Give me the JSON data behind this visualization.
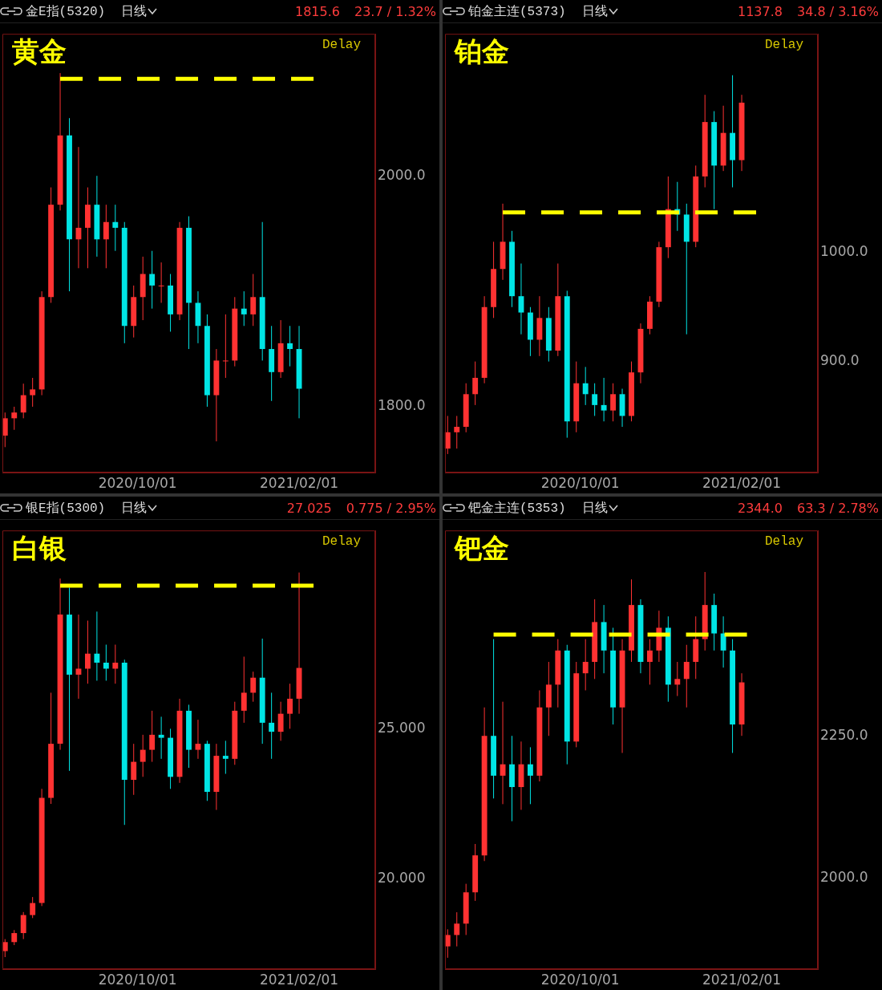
{
  "chart_data": [
    {
      "type": "candlestick",
      "title": "金E指(5320)",
      "subtitle": "日线",
      "annotations": [
        "1815.6",
        "23.7 / 1.32%",
        "黄金",
        "Delay"
      ],
      "x": [
        "2020-06-22",
        "2020-06-29",
        "2020-07-06",
        "2020-07-13",
        "2020-07-20",
        "2020-07-27",
        "2020-08-03",
        "2020-08-10",
        "2020-08-17",
        "2020-08-24",
        "2020-08-31",
        "2020-09-07",
        "2020-09-14",
        "2020-09-21",
        "2020-09-28",
        "2020-10-05",
        "2020-10-12",
        "2020-10-19",
        "2020-10-26",
        "2020-11-02",
        "2020-11-09",
        "2020-11-16",
        "2020-11-23",
        "2020-11-30",
        "2020-12-07",
        "2020-12-14",
        "2020-12-21",
        "2020-12-28",
        "2021-01-04",
        "2021-01-11",
        "2021-01-18",
        "2021-01-25",
        "2021-02-01"
      ],
      "ohlc": [
        [
          1775,
          1795,
          1765,
          1790
        ],
        [
          1790,
          1800,
          1780,
          1795
        ],
        [
          1795,
          1820,
          1790,
          1810
        ],
        [
          1810,
          1825,
          1800,
          1815
        ],
        [
          1815,
          1900,
          1810,
          1895
        ],
        [
          1895,
          1990,
          1890,
          1975
        ],
        [
          1975,
          2089,
          1970,
          2035
        ],
        [
          2035,
          2050,
          1900,
          1945
        ],
        [
          1945,
          2025,
          1920,
          1955
        ],
        [
          1955,
          1990,
          1920,
          1975
        ],
        [
          1975,
          2000,
          1930,
          1945
        ],
        [
          1945,
          1975,
          1920,
          1960
        ],
        [
          1960,
          1975,
          1935,
          1955
        ],
        [
          1955,
          1960,
          1855,
          1870
        ],
        [
          1870,
          1905,
          1860,
          1895
        ],
        [
          1895,
          1930,
          1875,
          1915
        ],
        [
          1915,
          1935,
          1885,
          1905
        ],
        [
          1905,
          1925,
          1890,
          1905
        ],
        [
          1905,
          1915,
          1865,
          1880
        ],
        [
          1880,
          1960,
          1875,
          1955
        ],
        [
          1955,
          1965,
          1850,
          1890
        ],
        [
          1890,
          1900,
          1855,
          1870
        ],
        [
          1870,
          1880,
          1800,
          1810
        ],
        [
          1810,
          1850,
          1770,
          1840
        ],
        [
          1840,
          1880,
          1825,
          1840
        ],
        [
          1840,
          1895,
          1835,
          1885
        ],
        [
          1885,
          1900,
          1870,
          1880
        ],
        [
          1880,
          1915,
          1870,
          1895
        ],
        [
          1895,
          1960,
          1840,
          1850
        ],
        [
          1850,
          1870,
          1805,
          1830
        ],
        [
          1830,
          1875,
          1825,
          1855
        ],
        [
          1855,
          1870,
          1835,
          1850
        ],
        [
          1850,
          1870,
          1790,
          1815.6
        ]
      ],
      "xlim": [
        "2020-06-20",
        "2021-03-31"
      ],
      "xticks": [
        {
          "value": "2020-10-01",
          "label": "2020/10/01"
        },
        {
          "value": "2021-02-01",
          "label": "2021/02/01"
        }
      ],
      "ylim": [
        1743,
        2123
      ],
      "yticks": [
        {
          "value": 1800,
          "label": "1800.0"
        },
        {
          "value": 2000,
          "label": "2000.0"
        }
      ],
      "ref_lines": [
        {
          "axis": "y",
          "value": 2084,
          "color": "#ffff00",
          "line_style": "dashed"
        }
      ]
    },
    {
      "type": "candlestick",
      "title": "铂金主连(5373)",
      "subtitle": "日线",
      "annotations": [
        "1137.8",
        "34.8 / 3.16%",
        "铂金",
        "Delay"
      ],
      "x": [
        "2020-06-22",
        "2020-06-29",
        "2020-07-06",
        "2020-07-13",
        "2020-07-20",
        "2020-07-27",
        "2020-08-03",
        "2020-08-10",
        "2020-08-17",
        "2020-08-24",
        "2020-08-31",
        "2020-09-07",
        "2020-09-14",
        "2020-09-21",
        "2020-09-28",
        "2020-10-05",
        "2020-10-12",
        "2020-10-19",
        "2020-10-26",
        "2020-11-02",
        "2020-11-09",
        "2020-11-16",
        "2020-11-23",
        "2020-11-30",
        "2020-12-07",
        "2020-12-14",
        "2020-12-21",
        "2020-12-28",
        "2021-01-04",
        "2021-01-11",
        "2021-01-18",
        "2021-01-25",
        "2021-02-01"
      ],
      "ohlc": [
        [
          820,
          850,
          815,
          835
        ],
        [
          835,
          850,
          820,
          840
        ],
        [
          840,
          880,
          835,
          870
        ],
        [
          870,
          900,
          860,
          885
        ],
        [
          885,
          960,
          880,
          950
        ],
        [
          950,
          1010,
          940,
          985
        ],
        [
          985,
          1045,
          975,
          1010
        ],
        [
          1010,
          1020,
          950,
          960
        ],
        [
          960,
          990,
          925,
          945
        ],
        [
          945,
          950,
          905,
          920
        ],
        [
          920,
          960,
          905,
          940
        ],
        [
          940,
          950,
          900,
          910
        ],
        [
          910,
          990,
          905,
          960
        ],
        [
          960,
          965,
          830,
          845
        ],
        [
          845,
          900,
          835,
          880
        ],
        [
          880,
          895,
          860,
          870
        ],
        [
          870,
          880,
          850,
          860
        ],
        [
          860,
          885,
          845,
          855
        ],
        [
          855,
          880,
          845,
          870
        ],
        [
          870,
          875,
          840,
          850
        ],
        [
          850,
          900,
          845,
          890
        ],
        [
          890,
          935,
          880,
          930
        ],
        [
          930,
          960,
          925,
          955
        ],
        [
          955,
          1010,
          950,
          1005
        ],
        [
          1005,
          1070,
          995,
          1040
        ],
        [
          1040,
          1065,
          1020,
          1035
        ],
        [
          1035,
          1045,
          925,
          1010
        ],
        [
          1010,
          1080,
          1005,
          1070
        ],
        [
          1070,
          1145,
          1060,
          1120
        ],
        [
          1120,
          1130,
          1040,
          1080
        ],
        [
          1080,
          1135,
          1075,
          1110
        ],
        [
          1110,
          1163,
          1060,
          1085
        ],
        [
          1085,
          1145,
          1075,
          1137.8
        ]
      ],
      "xlim": [
        "2020-06-20",
        "2021-03-31"
      ],
      "xticks": [
        {
          "value": "2020-10-01",
          "label": "2020/10/01"
        },
        {
          "value": "2021-02-01",
          "label": "2021/02/01"
        }
      ],
      "ylim": [
        798,
        1201
      ],
      "yticks": [
        {
          "value": 900,
          "label": "900.0"
        },
        {
          "value": 1000,
          "label": "1000.0"
        }
      ],
      "ref_lines": [
        {
          "axis": "y",
          "value": 1037,
          "color": "#ffff00",
          "line_style": "dashed"
        }
      ]
    },
    {
      "type": "candlestick",
      "title": "银E指(5300)",
      "subtitle": "日线",
      "annotations": [
        "27.025",
        "0.775 / 2.95%",
        "白银",
        "Delay"
      ],
      "x": [
        "2020-06-22",
        "2020-06-29",
        "2020-07-06",
        "2020-07-13",
        "2020-07-20",
        "2020-07-27",
        "2020-08-03",
        "2020-08-10",
        "2020-08-17",
        "2020-08-24",
        "2020-08-31",
        "2020-09-07",
        "2020-09-14",
        "2020-09-21",
        "2020-09-28",
        "2020-10-05",
        "2020-10-12",
        "2020-10-19",
        "2020-10-26",
        "2020-11-02",
        "2020-11-09",
        "2020-11-16",
        "2020-11-23",
        "2020-11-30",
        "2020-12-07",
        "2020-12-14",
        "2020-12-21",
        "2020-12-28",
        "2021-01-04",
        "2021-01-11",
        "2021-01-18",
        "2021-01-25",
        "2021-02-01"
      ],
      "ohlc": [
        [
          17.6,
          18.0,
          17.4,
          17.9
        ],
        [
          17.9,
          18.3,
          17.8,
          18.2
        ],
        [
          18.2,
          18.9,
          18.0,
          18.8
        ],
        [
          18.8,
          19.4,
          18.7,
          19.2
        ],
        [
          19.2,
          23.0,
          19.1,
          22.7
        ],
        [
          22.7,
          26.2,
          22.5,
          24.5
        ],
        [
          24.5,
          30.0,
          24.3,
          28.8
        ],
        [
          28.8,
          29.7,
          23.6,
          26.8
        ],
        [
          26.8,
          28.8,
          26.0,
          27.0
        ],
        [
          27.0,
          28.6,
          26.5,
          27.5
        ],
        [
          27.5,
          28.9,
          26.6,
          27.2
        ],
        [
          27.2,
          27.8,
          26.6,
          27.0
        ],
        [
          27.0,
          27.8,
          26.5,
          27.2
        ],
        [
          27.2,
          27.3,
          21.8,
          23.3
        ],
        [
          23.3,
          24.5,
          22.8,
          23.9
        ],
        [
          23.9,
          24.8,
          23.4,
          24.3
        ],
        [
          24.3,
          25.6,
          23.9,
          24.8
        ],
        [
          24.8,
          25.4,
          24.0,
          24.7
        ],
        [
          24.7,
          25.0,
          23.0,
          23.4
        ],
        [
          23.4,
          26.0,
          23.2,
          25.6
        ],
        [
          25.6,
          25.8,
          23.7,
          24.3
        ],
        [
          24.3,
          25.3,
          24.0,
          24.5
        ],
        [
          24.5,
          24.6,
          22.6,
          22.9
        ],
        [
          22.9,
          24.5,
          22.3,
          24.1
        ],
        [
          24.1,
          24.6,
          23.5,
          24.0
        ],
        [
          24.0,
          25.9,
          23.8,
          25.6
        ],
        [
          25.6,
          27.4,
          25.2,
          26.2
        ],
        [
          26.2,
          26.9,
          25.9,
          26.7
        ],
        [
          26.7,
          28.0,
          24.5,
          25.2
        ],
        [
          25.2,
          26.2,
          24.0,
          24.9
        ],
        [
          24.9,
          25.9,
          24.6,
          25.5
        ],
        [
          25.5,
          26.5,
          25.0,
          26.0
        ],
        [
          26.0,
          30.2,
          25.5,
          27.025
        ]
      ],
      "xlim": [
        "2020-06-20",
        "2021-03-31"
      ],
      "xticks": [
        {
          "value": "2020-10-01",
          "label": "2020/10/01"
        },
        {
          "value": "2021-02-01",
          "label": "2021/02/01"
        }
      ],
      "ylim": [
        17.0,
        31.6
      ],
      "yticks": [
        {
          "value": 20,
          "label": "20.000"
        },
        {
          "value": 25,
          "label": "25.000"
        }
      ],
      "ref_lines": [
        {
          "axis": "y",
          "value": 29.76,
          "color": "#ffff00",
          "line_style": "dashed"
        }
      ]
    },
    {
      "type": "candlestick",
      "title": "钯金主连(5353)",
      "subtitle": "日线",
      "annotations": [
        "2344.0",
        "63.3 / 2.78%",
        "钯金",
        "Delay"
      ],
      "x": [
        "2020-06-22",
        "2020-06-29",
        "2020-07-06",
        "2020-07-13",
        "2020-07-20",
        "2020-07-27",
        "2020-08-03",
        "2020-08-10",
        "2020-08-17",
        "2020-08-24",
        "2020-08-31",
        "2020-09-07",
        "2020-09-14",
        "2020-09-21",
        "2020-09-28",
        "2020-10-05",
        "2020-10-12",
        "2020-10-19",
        "2020-10-26",
        "2020-11-02",
        "2020-11-09",
        "2020-11-16",
        "2020-11-23",
        "2020-11-30",
        "2020-12-07",
        "2020-12-14",
        "2020-12-21",
        "2020-12-28",
        "2021-01-04",
        "2021-01-11",
        "2021-01-18",
        "2021-01-25",
        "2021-02-01"
      ],
      "ohlc": [
        [
          1880,
          1910,
          1860,
          1900
        ],
        [
          1900,
          1940,
          1880,
          1920
        ],
        [
          1920,
          1990,
          1900,
          1975
        ],
        [
          1975,
          2060,
          1960,
          2040
        ],
        [
          2040,
          2300,
          2030,
          2250
        ],
        [
          2250,
          2420,
          2140,
          2180
        ],
        [
          2180,
          2310,
          2130,
          2200
        ],
        [
          2200,
          2250,
          2100,
          2160
        ],
        [
          2160,
          2240,
          2120,
          2200
        ],
        [
          2200,
          2230,
          2130,
          2180
        ],
        [
          2180,
          2330,
          2170,
          2300
        ],
        [
          2300,
          2380,
          2250,
          2340
        ],
        [
          2340,
          2420,
          2300,
          2400
        ],
        [
          2400,
          2410,
          2200,
          2240
        ],
        [
          2240,
          2380,
          2230,
          2360
        ],
        [
          2360,
          2420,
          2330,
          2380
        ],
        [
          2380,
          2490,
          2350,
          2450
        ],
        [
          2450,
          2480,
          2360,
          2400
        ],
        [
          2400,
          2440,
          2270,
          2300
        ],
        [
          2300,
          2420,
          2220,
          2400
        ],
        [
          2400,
          2525,
          2380,
          2480
        ],
        [
          2480,
          2490,
          2360,
          2380
        ],
        [
          2380,
          2420,
          2340,
          2400
        ],
        [
          2400,
          2470,
          2380,
          2440
        ],
        [
          2440,
          2460,
          2310,
          2340
        ],
        [
          2340,
          2380,
          2320,
          2350
        ],
        [
          2350,
          2410,
          2300,
          2380
        ],
        [
          2380,
          2460,
          2350,
          2420
        ],
        [
          2420,
          2538,
          2400,
          2480
        ],
        [
          2480,
          2500,
          2400,
          2430
        ],
        [
          2430,
          2460,
          2370,
          2400
        ],
        [
          2400,
          2420,
          2220,
          2270
        ],
        [
          2270,
          2360,
          2250,
          2344.0
        ]
      ],
      "xlim": [
        "2020-06-20",
        "2021-03-31"
      ],
      "xticks": [
        {
          "value": "2020-10-01",
          "label": "2020/10/01"
        },
        {
          "value": "2021-02-01",
          "label": "2021/02/01"
        }
      ],
      "ylim": [
        1840,
        2611
      ],
      "yticks": [
        {
          "value": 2000,
          "label": "2000.0"
        },
        {
          "value": 2250,
          "label": "2250.0"
        }
      ],
      "ref_lines": [
        {
          "axis": "y",
          "value": 2428,
          "color": "#ffff00",
          "line_style": "dashed"
        }
      ]
    }
  ]
}
